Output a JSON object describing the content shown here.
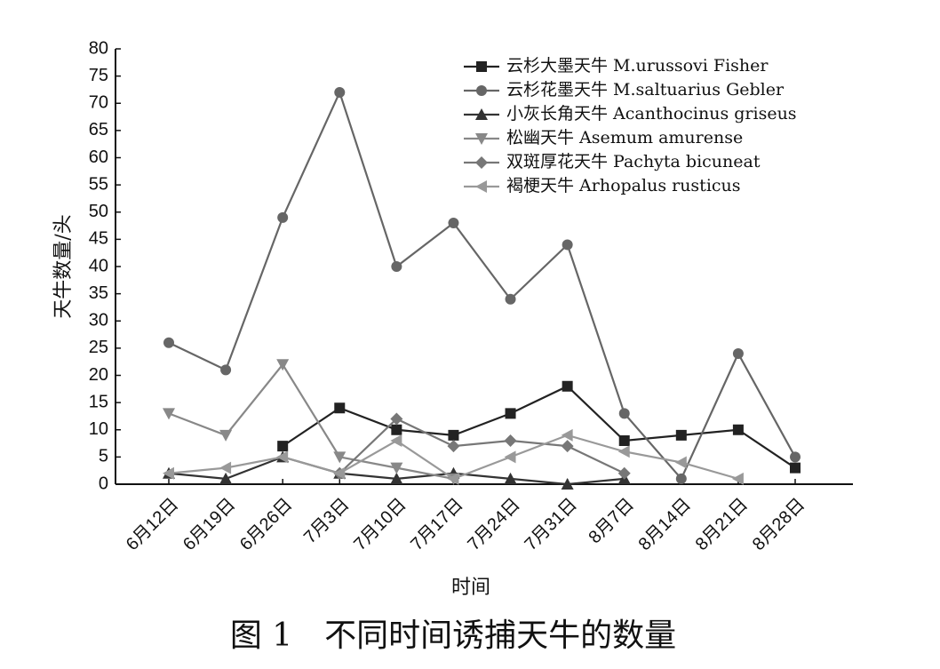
{
  "chart_data": {
    "type": "line",
    "title": "图 1　不同时间诱捕天牛的数量",
    "x_label": "时间",
    "y_label": "天牛数量/头",
    "categories": [
      "6月12日",
      "6月19日",
      "6月26日",
      "7月3日",
      "7月10日",
      "7月17日",
      "7月24日",
      "7月31日",
      "8月7日",
      "8月14日",
      "8月21日",
      "8月28日"
    ],
    "series": [
      {
        "name": "云杉大墨天牛 M.urussovi Fisher",
        "color": "#222222",
        "marker": "square",
        "values": [
          null,
          null,
          7,
          14,
          10,
          9,
          13,
          18,
          8,
          9,
          10,
          3
        ]
      },
      {
        "name": "云杉花墨天牛 M.saltuarius Gebler",
        "color": "#666666",
        "marker": "circle",
        "values": [
          26,
          21,
          49,
          72,
          40,
          48,
          34,
          44,
          13,
          1,
          24,
          5
        ]
      },
      {
        "name": "小灰长角天牛 Acanthocinus griseus",
        "color": "#333333",
        "marker": "triangle-up",
        "values": [
          2,
          1,
          5,
          2,
          1,
          2,
          1,
          0,
          1,
          null,
          null,
          null
        ]
      },
      {
        "name": "松幽天牛 Asemum amurense",
        "color": "#888888",
        "marker": "triangle-down",
        "values": [
          13,
          9,
          22,
          5,
          3,
          1,
          null,
          null,
          null,
          null,
          null,
          null
        ]
      },
      {
        "name": "双斑厚花天牛 Pachyta bicuneat",
        "color": "#777777",
        "marker": "diamond",
        "values": [
          null,
          null,
          null,
          2,
          12,
          7,
          8,
          7,
          2,
          null,
          null,
          null
        ]
      },
      {
        "name": "褐梗天牛 Arhopalus rusticus",
        "color": "#999999",
        "marker": "triangle-left",
        "values": [
          2,
          3,
          5,
          2,
          8,
          1,
          5,
          9,
          6,
          4,
          1,
          null
        ]
      }
    ],
    "ylim": [
      0,
      80
    ],
    "yticks": [
      0,
      5,
      10,
      15,
      20,
      25,
      30,
      35,
      40,
      45,
      50,
      55,
      60,
      65,
      70,
      75,
      80
    ],
    "legend": "top-right"
  }
}
